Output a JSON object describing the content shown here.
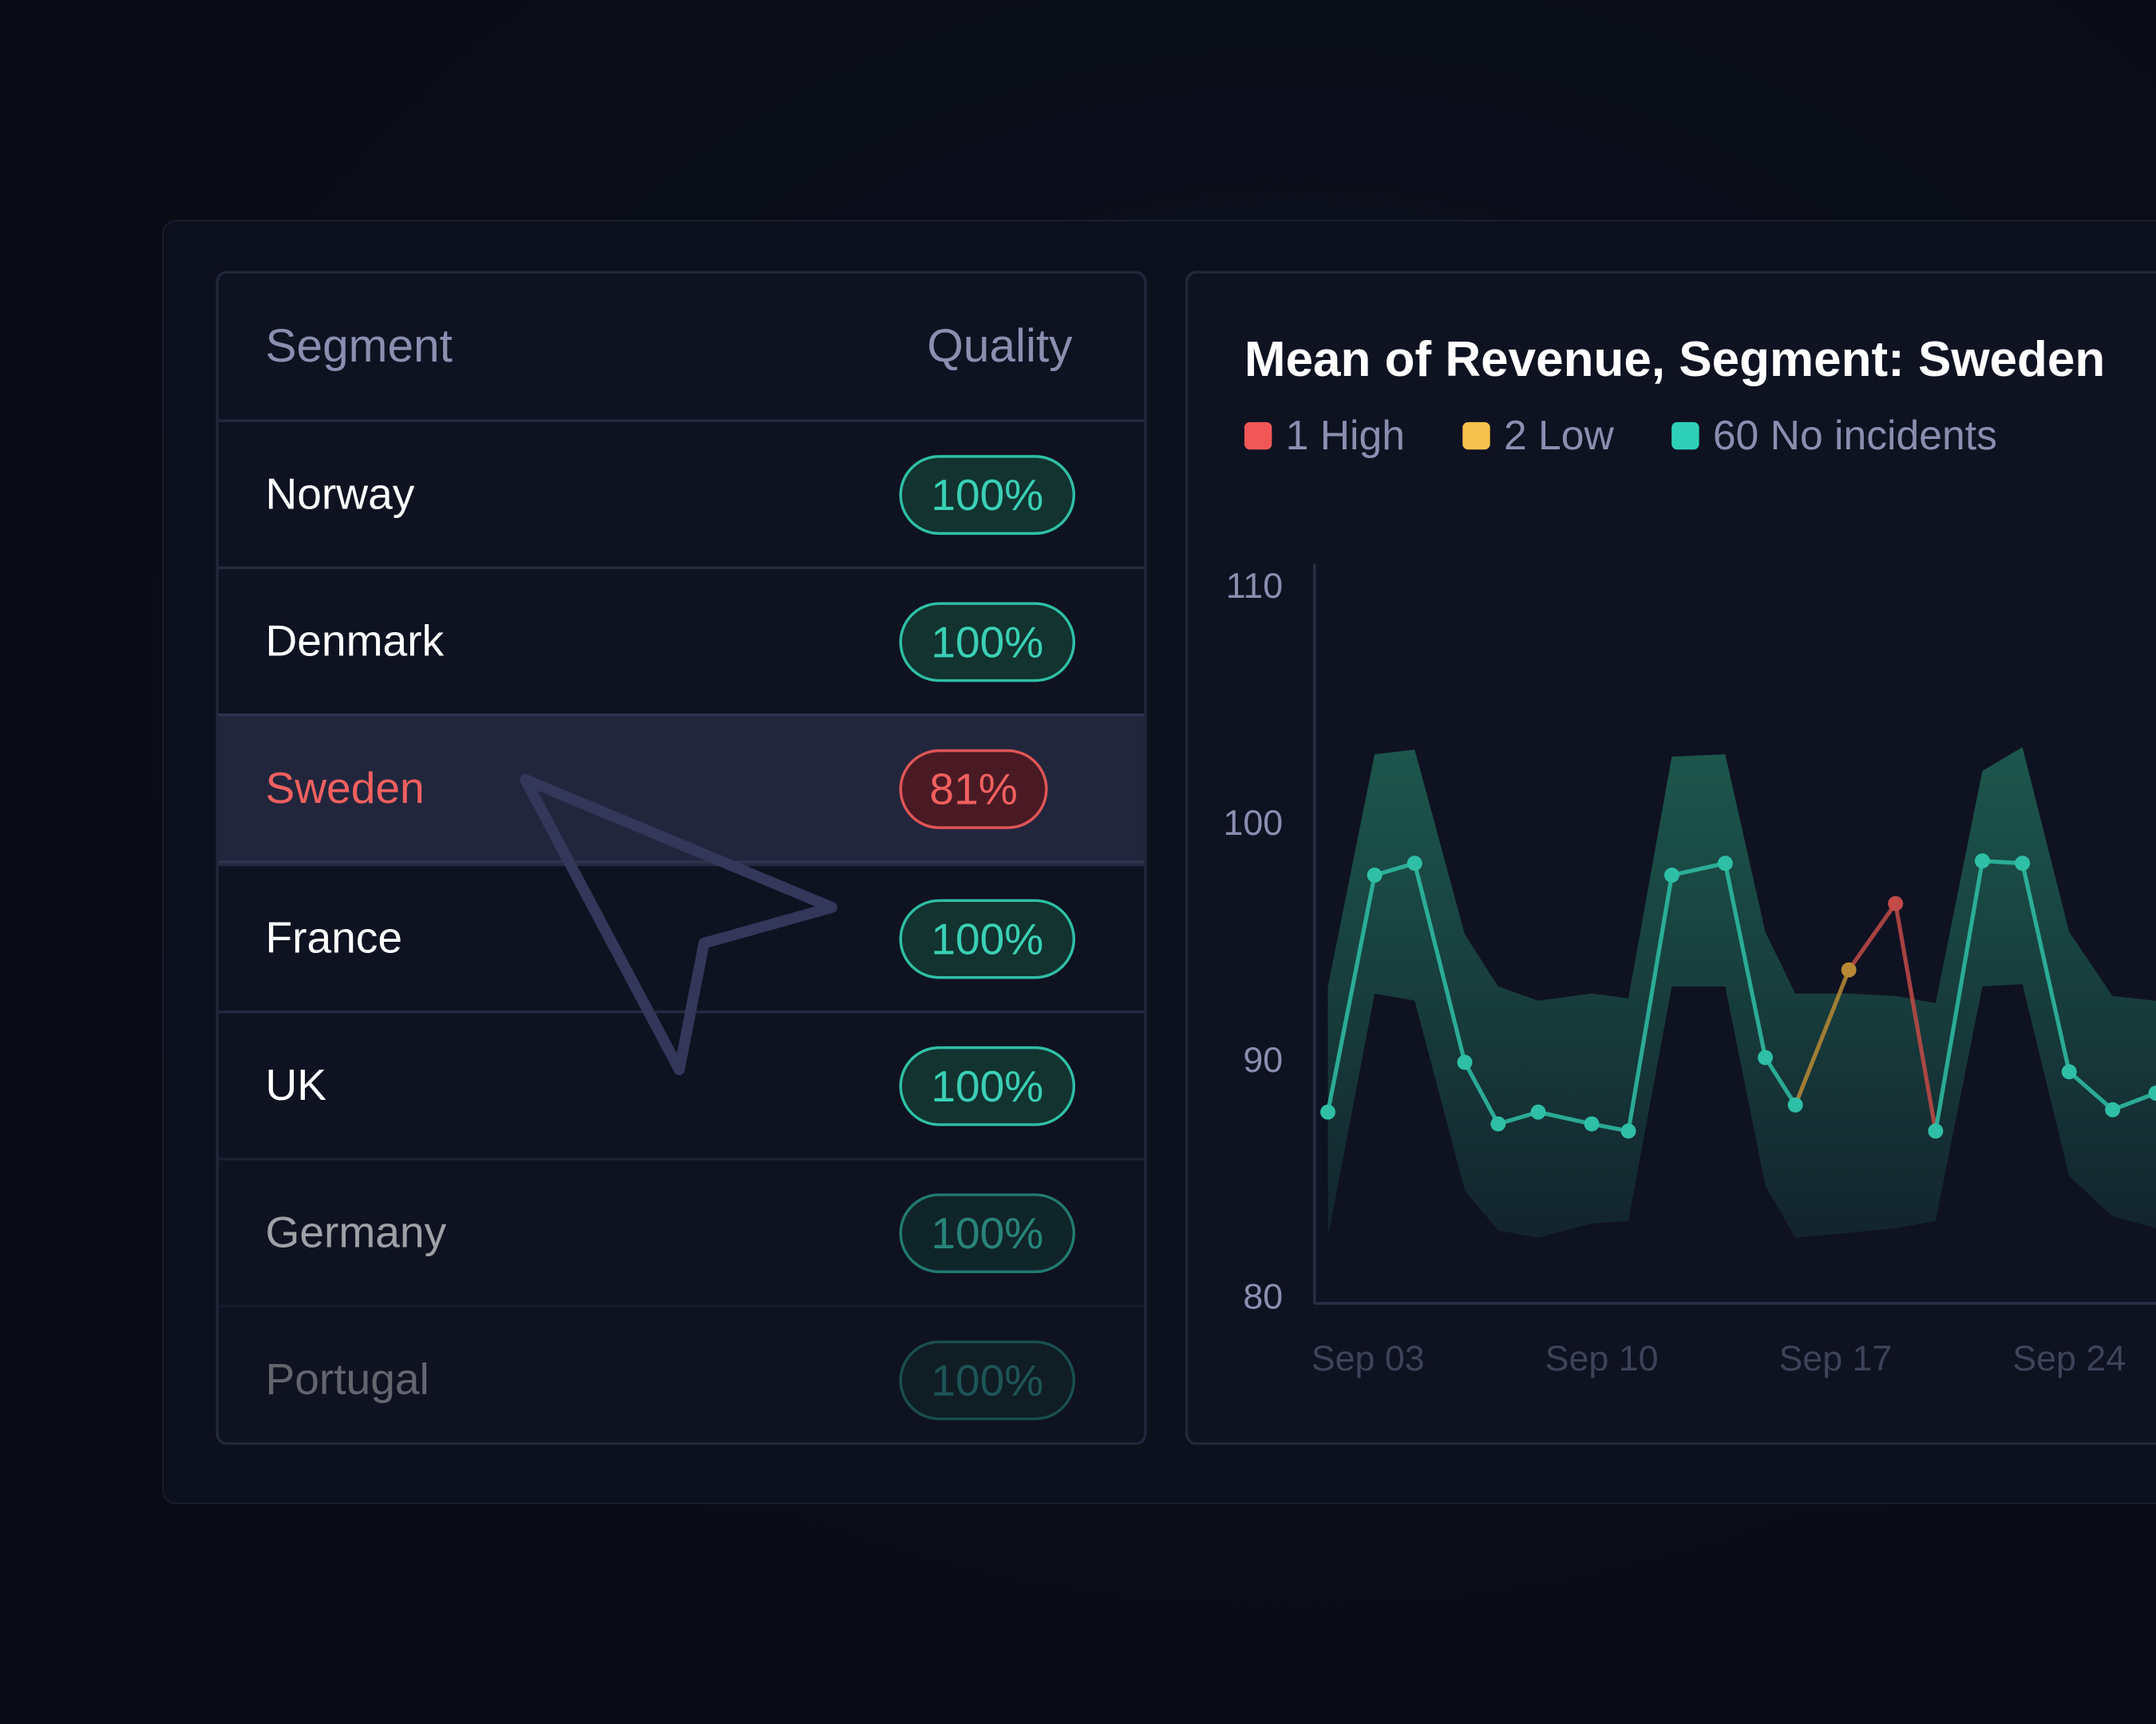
{
  "table": {
    "headers": [
      "Segment",
      "Quality"
    ],
    "rows": [
      [
        "Norway",
        "100%"
      ],
      [
        "Denmark",
        "100%"
      ],
      [
        "Sweden",
        "81%"
      ],
      [
        "France",
        "100%"
      ],
      [
        "UK",
        "100%"
      ],
      [
        "Germany",
        "100%"
      ],
      [
        "Portugal",
        "100%"
      ]
    ]
  },
  "chart_data": {
    "type": "line",
    "title": "Mean of Revenue, Segment: Sweden",
    "legend": [
      {
        "label": "1 High",
        "color": "#f25757"
      },
      {
        "label": "2 Low",
        "color": "#f7c14d"
      },
      {
        "label": "60 No incidents",
        "color": "#2fd0b8"
      }
    ],
    "x": [
      1.8,
      3.2,
      4.4,
      5.9,
      6.9,
      8.1,
      9.7,
      10.8,
      12.1,
      13.7,
      14.9,
      15.8,
      17.4,
      18.8,
      20.0,
      21.4,
      22.6,
      24.0,
      25.3,
      26.6
    ],
    "xlim": [
      1.4,
      26.6
    ],
    "xticks": [
      {
        "value": 3,
        "label": "Sep 03"
      },
      {
        "value": 10,
        "label": "Sep 10"
      },
      {
        "value": 17,
        "label": "Sep 17"
      },
      {
        "value": 24,
        "label": "Sep 24"
      }
    ],
    "ylim": [
      80,
      110
    ],
    "yticks": [
      80,
      90,
      100,
      110
    ],
    "series": [
      {
        "color": "#2fbfa6",
        "values": [
          87.9,
          97.9,
          98.4,
          90.0,
          87.4,
          87.9,
          87.4,
          87.1,
          97.9,
          98.4,
          90.2,
          88.2,
          93.9,
          96.7,
          87.1,
          98.5,
          98.4,
          89.6,
          88.0,
          88.7
        ],
        "point_colors": [
          "#2fbfa6",
          "#2fbfa6",
          "#2fbfa6",
          "#2fbfa6",
          "#2fbfa6",
          "#2fbfa6",
          "#2fbfa6",
          "#2fbfa6",
          "#2fbfa6",
          "#2fbfa6",
          "#2fbfa6",
          "#2fbfa6",
          "#b98a35",
          "#c24a48",
          "#2fbfa6",
          "#2fbfa6",
          "#2fbfa6",
          "#2fbfa6",
          "#2fbfa6",
          "#2fbfa6"
        ]
      }
    ],
    "band": {
      "color": "#1d5a4f",
      "upper": [
        93.2,
        103.0,
        103.2,
        95.4,
        93.2,
        92.6,
        92.9,
        92.7,
        102.9,
        103.0,
        95.5,
        92.9,
        92.9,
        92.8,
        92.5,
        102.3,
        103.3,
        95.5,
        92.8,
        92.6
      ],
      "lower": [
        82.6,
        92.9,
        92.6,
        84.6,
        82.9,
        82.6,
        83.2,
        83.3,
        93.2,
        93.2,
        84.8,
        82.6,
        82.8,
        83.0,
        83.3,
        93.2,
        93.3,
        85.2,
        83.5,
        83.0
      ]
    }
  }
}
